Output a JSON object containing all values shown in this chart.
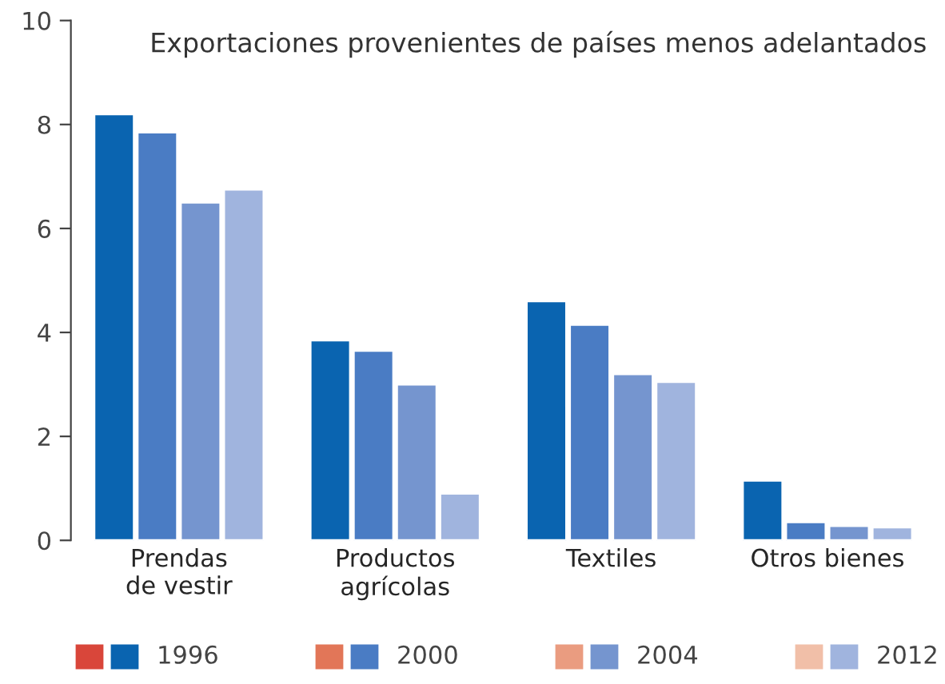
{
  "chart_data": {
    "type": "bar",
    "title": "Exportaciones provenientes de países menos adelantados",
    "categories": [
      "Prendas\nde vestir",
      "Productos\nagrícolas",
      "Textiles",
      "Otros bienes"
    ],
    "series": [
      {
        "name": "1996",
        "color": "#0a64b0",
        "values": [
          8.2,
          3.85,
          4.6,
          1.15
        ]
      },
      {
        "name": "2000",
        "color": "#4a7cc4",
        "values": [
          7.85,
          3.65,
          4.15,
          0.35
        ]
      },
      {
        "name": "2004",
        "color": "#7595cf",
        "values": [
          6.5,
          3.0,
          3.2,
          0.28
        ]
      },
      {
        "name": "2012",
        "color": "#a0b4de",
        "values": [
          6.75,
          0.9,
          3.05,
          0.25
        ]
      }
    ],
    "ylim": [
      0,
      10
    ],
    "yticks": [
      0,
      2,
      4,
      6,
      8,
      10
    ],
    "grid": false,
    "legend": "bottom"
  }
}
